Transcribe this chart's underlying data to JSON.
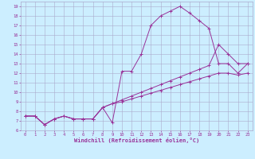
{
  "xlabel": "Windchill (Refroidissement éolien,°C)",
  "bg_color": "#cceeff",
  "grid_color": "#aaaacc",
  "line_color": "#993399",
  "xlim": [
    -0.5,
    23.5
  ],
  "ylim": [
    6,
    19.5
  ],
  "xticks": [
    0,
    1,
    2,
    3,
    4,
    5,
    6,
    7,
    8,
    9,
    10,
    11,
    12,
    13,
    14,
    15,
    16,
    17,
    18,
    19,
    20,
    21,
    22,
    23
  ],
  "yticks": [
    6,
    7,
    8,
    9,
    10,
    11,
    12,
    13,
    14,
    15,
    16,
    17,
    18,
    19
  ],
  "line1_x": [
    0,
    1,
    2,
    3,
    4,
    5,
    6,
    7,
    8,
    9,
    10,
    11,
    12,
    13,
    14,
    15,
    16,
    17,
    18,
    19,
    20,
    21,
    22,
    23
  ],
  "line1_y": [
    7.5,
    7.5,
    6.6,
    7.2,
    7.5,
    7.2,
    7.2,
    7.2,
    8.4,
    6.8,
    12.2,
    12.2,
    14.0,
    17.0,
    18.0,
    18.5,
    19.0,
    18.3,
    17.5,
    16.7,
    13.0,
    13.0,
    12.0,
    13.0
  ],
  "line2_x": [
    0,
    1,
    2,
    3,
    4,
    5,
    6,
    7,
    8,
    9,
    10,
    11,
    12,
    13,
    14,
    15,
    16,
    17,
    18,
    19,
    20,
    21,
    22,
    23
  ],
  "line2_y": [
    7.5,
    7.5,
    6.6,
    7.2,
    7.5,
    7.2,
    7.2,
    7.2,
    8.4,
    8.8,
    9.2,
    9.6,
    10.0,
    10.4,
    10.8,
    11.2,
    11.6,
    12.0,
    12.4,
    12.8,
    15.0,
    14.0,
    13.0,
    13.0
  ],
  "line3_x": [
    0,
    1,
    2,
    3,
    4,
    5,
    6,
    7,
    8,
    9,
    10,
    11,
    12,
    13,
    14,
    15,
    16,
    17,
    18,
    19,
    20,
    21,
    22,
    23
  ],
  "line3_y": [
    7.5,
    7.5,
    6.6,
    7.2,
    7.5,
    7.2,
    7.2,
    7.2,
    8.4,
    8.8,
    9.0,
    9.3,
    9.6,
    9.9,
    10.2,
    10.5,
    10.8,
    11.1,
    11.4,
    11.7,
    12.0,
    12.0,
    11.8,
    12.0
  ]
}
